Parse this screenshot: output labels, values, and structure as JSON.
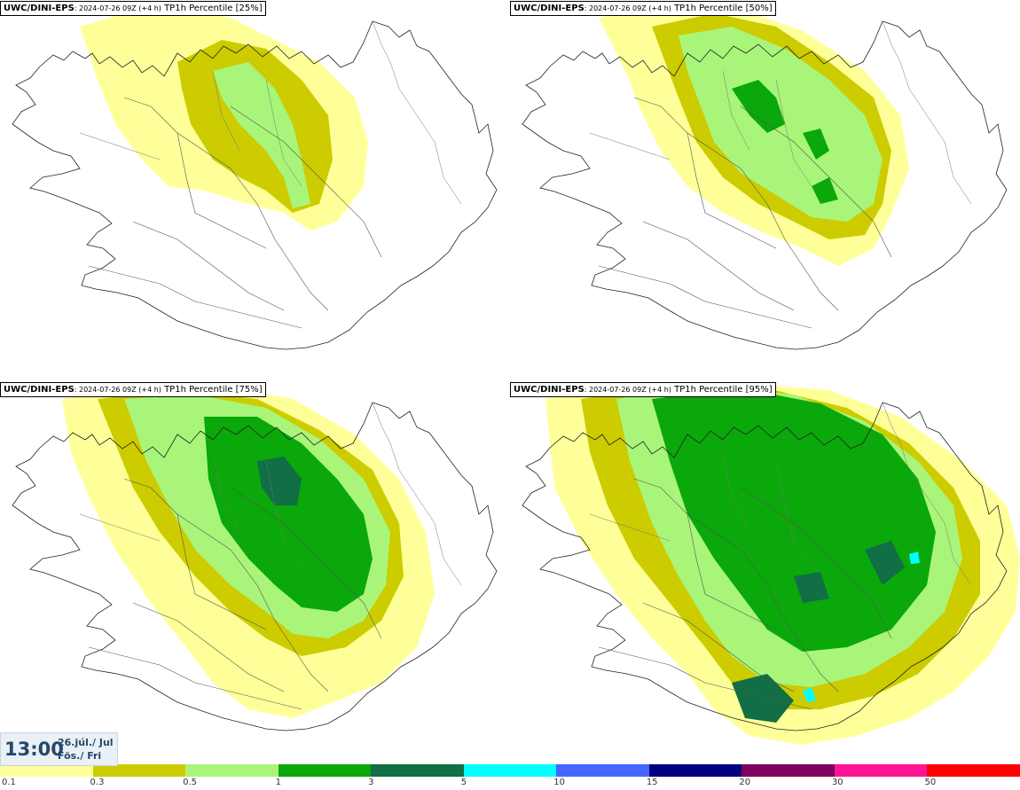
{
  "panels": [
    {
      "model": "UWC/DINI-EPS",
      "run": ": 2024-07-26 09Z (+4 h)",
      "product": "TP1h Percentile [25%]"
    },
    {
      "model": "UWC/DINI-EPS",
      "run": ": 2024-07-26 09Z (+4 h)",
      "product": "TP1h Percentile [50%]"
    },
    {
      "model": "UWC/DINI-EPS",
      "run": ": 2024-07-26 09Z (+4 h)",
      "product": "TP1h Percentile [75%]"
    },
    {
      "model": "UWC/DINI-EPS",
      "run": ": 2024-07-26 09Z (+4 h)",
      "product": "TP1h Percentile [95%]"
    }
  ],
  "valid_time": {
    "time": "13:00",
    "date_line": "26.júl./ Jul",
    "day_line": "Fös./ Fri"
  },
  "colorbar": {
    "colors": [
      "#ffff99",
      "#cccc00",
      "#a9f57a",
      "#0aa80a",
      "#116e45",
      "#00ffff",
      "#4466ff",
      "#000080",
      "#800060",
      "#ff1493",
      "#ff0000"
    ],
    "labels": [
      "0.1",
      "0.3",
      "0.5",
      "1",
      "3",
      "5",
      "10",
      "15",
      "20",
      "30",
      "50"
    ]
  }
}
